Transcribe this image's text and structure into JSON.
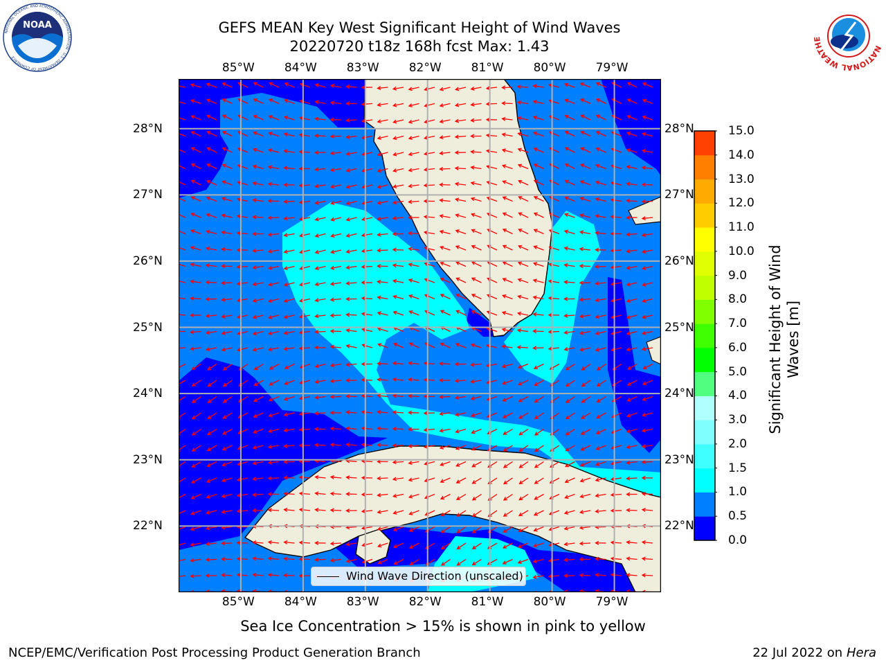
{
  "header": {
    "title_line1": "GEFS MEAN Key West Significant Height of Wind Waves",
    "title_line2": "20220720 t18z 168h fcst   Max: 1.43"
  },
  "map": {
    "lon_labels": [
      "85°W",
      "84°W",
      "83°W",
      "82°W",
      "81°W",
      "80°W",
      "79°W"
    ],
    "lat_labels": [
      "28°N",
      "27°N",
      "26°N",
      "25°N",
      "24°N",
      "23°N",
      "22°N"
    ],
    "extent": {
      "lon_min": -86.0,
      "lon_max": -78.25,
      "lat_min": 21.0,
      "lat_max": 28.75
    },
    "land_color": "#efeedc",
    "arrow_color": "#ff0000"
  },
  "legend": {
    "label": "Wind Wave Direction (unscaled)"
  },
  "colorbar": {
    "label_line1": "Significant Height of Wind",
    "label_line2": "Waves [m]",
    "ticks": [
      "0.0",
      "0.5",
      "1.0",
      "1.5",
      "2.0",
      "3.0",
      "4.0",
      "5.0",
      "6.0",
      "7.0",
      "8.0",
      "9.0",
      "10.0",
      "11.0",
      "12.0",
      "13.0",
      "14.0",
      "15.0"
    ],
    "colors": [
      "#0000ff",
      "#0080ff",
      "#00ffff",
      "#40ffff",
      "#80ffff",
      "#b0ffff",
      "#50ff80",
      "#00ff00",
      "#40ff00",
      "#80ff00",
      "#c0ff00",
      "#e0ff00",
      "#ffff00",
      "#ffcc00",
      "#ffaa00",
      "#ff8000",
      "#ff4000",
      "#ff0000"
    ]
  },
  "sea_ice_note": "Sea Ice Concentration > 15% is shown in pink to yellow",
  "footer": {
    "left": "NCEP/EMC/Verification Post Processing Product Generation Branch",
    "right_date": "22 Jul 2022 on ",
    "right_host": "Hera"
  },
  "logos": {
    "noaa_text": "NOAA",
    "noaa_ring": "NATIONAL OCEANIC AND ATMOSPHERIC ADMINISTRATION · U.S. DEPARTMENT OF COMMERCE",
    "nws_ring": "NATIONAL WEATHER SERVICE"
  }
}
